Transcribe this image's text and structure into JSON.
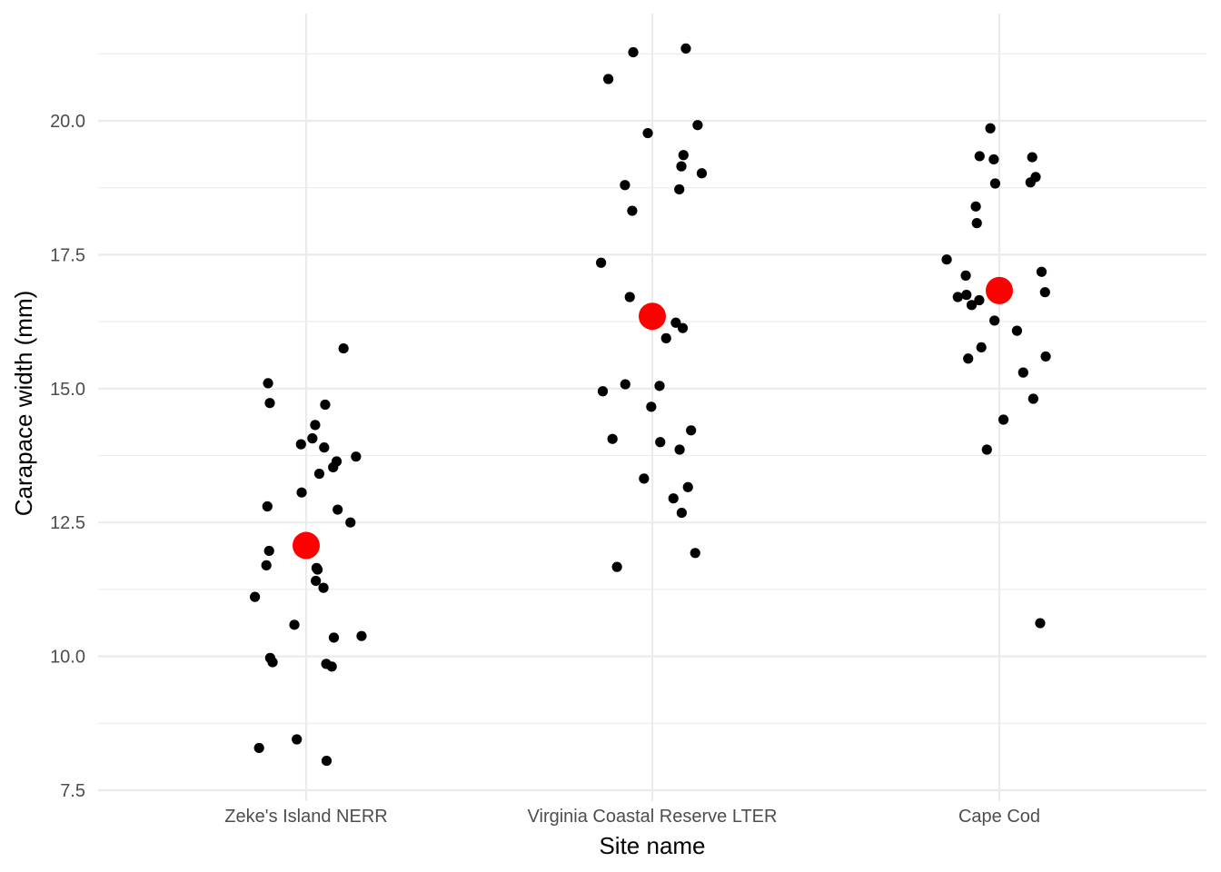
{
  "chart_data": {
    "type": "scatter",
    "title": "",
    "xlabel": "Site name",
    "ylabel": "Carapace width (mm)",
    "categories": [
      "Zeke's Island NERR",
      "Virginia Coastal Reserve LTER",
      "Cape Cod"
    ],
    "ylim": [
      7.35,
      21.8
    ],
    "yticks": [
      7.5,
      10.0,
      12.5,
      15.0,
      17.5,
      20.0
    ],
    "ytick_labels": [
      "7.5",
      "10.0",
      "12.5",
      "15.0",
      "17.5",
      "20.0"
    ],
    "grid": true,
    "legend": "none",
    "colors": {
      "points": "#000000",
      "means": "#ff0000",
      "grid": "#ebebeb"
    },
    "series": [
      {
        "role": "observations",
        "points": [
          {
            "cat": 0,
            "jitter": -0.11,
            "y": 15.1
          },
          {
            "cat": 0,
            "jitter": -0.105,
            "y": 14.73
          },
          {
            "cat": 0,
            "jitter": 0.055,
            "y": 14.7
          },
          {
            "cat": 0,
            "jitter": 0.108,
            "y": 15.75
          },
          {
            "cat": 0,
            "jitter": 0.026,
            "y": 14.32
          },
          {
            "cat": 0,
            "jitter": 0.018,
            "y": 14.07
          },
          {
            "cat": 0,
            "jitter": -0.015,
            "y": 13.96
          },
          {
            "cat": 0,
            "jitter": 0.052,
            "y": 13.9
          },
          {
            "cat": 0,
            "jitter": 0.144,
            "y": 13.73
          },
          {
            "cat": 0,
            "jitter": 0.088,
            "y": 13.64
          },
          {
            "cat": 0,
            "jitter": 0.078,
            "y": 13.53
          },
          {
            "cat": 0,
            "jitter": 0.038,
            "y": 13.41
          },
          {
            "cat": 0,
            "jitter": -0.013,
            "y": 13.06
          },
          {
            "cat": 0,
            "jitter": -0.112,
            "y": 12.8
          },
          {
            "cat": 0,
            "jitter": 0.091,
            "y": 12.74
          },
          {
            "cat": 0,
            "jitter": 0.128,
            "y": 12.5
          },
          {
            "cat": 0,
            "jitter": -0.107,
            "y": 11.97
          },
          {
            "cat": 0,
            "jitter": -0.115,
            "y": 11.7
          },
          {
            "cat": 0,
            "jitter": 0.03,
            "y": 11.65
          },
          {
            "cat": 0,
            "jitter": 0.033,
            "y": 11.62
          },
          {
            "cat": 0,
            "jitter": 0.028,
            "y": 11.41
          },
          {
            "cat": 0,
            "jitter": 0.05,
            "y": 11.28
          },
          {
            "cat": 0,
            "jitter": -0.148,
            "y": 11.11
          },
          {
            "cat": 0,
            "jitter": -0.034,
            "y": 10.59
          },
          {
            "cat": 0,
            "jitter": 0.16,
            "y": 10.38
          },
          {
            "cat": 0,
            "jitter": 0.08,
            "y": 10.35
          },
          {
            "cat": 0,
            "jitter": -0.104,
            "y": 9.97
          },
          {
            "cat": 0,
            "jitter": -0.097,
            "y": 9.89
          },
          {
            "cat": 0,
            "jitter": 0.058,
            "y": 9.86
          },
          {
            "cat": 0,
            "jitter": 0.074,
            "y": 9.81
          },
          {
            "cat": 0,
            "jitter": -0.027,
            "y": 8.45
          },
          {
            "cat": 0,
            "jitter": -0.136,
            "y": 8.29
          },
          {
            "cat": 0,
            "jitter": 0.059,
            "y": 8.05
          },
          {
            "cat": 1,
            "jitter": 0.097,
            "y": 21.35
          },
          {
            "cat": 1,
            "jitter": -0.055,
            "y": 21.28
          },
          {
            "cat": 1,
            "jitter": -0.127,
            "y": 20.78
          },
          {
            "cat": 1,
            "jitter": 0.131,
            "y": 19.92
          },
          {
            "cat": 1,
            "jitter": -0.013,
            "y": 19.77
          },
          {
            "cat": 1,
            "jitter": 0.09,
            "y": 19.36
          },
          {
            "cat": 1,
            "jitter": 0.084,
            "y": 19.15
          },
          {
            "cat": 1,
            "jitter": 0.143,
            "y": 19.02
          },
          {
            "cat": 1,
            "jitter": -0.079,
            "y": 18.8
          },
          {
            "cat": 1,
            "jitter": 0.078,
            "y": 18.72
          },
          {
            "cat": 1,
            "jitter": -0.058,
            "y": 18.32
          },
          {
            "cat": 1,
            "jitter": -0.148,
            "y": 17.35
          },
          {
            "cat": 1,
            "jitter": -0.065,
            "y": 16.71
          },
          {
            "cat": 1,
            "jitter": 0.068,
            "y": 16.23
          },
          {
            "cat": 1,
            "jitter": 0.088,
            "y": 16.13
          },
          {
            "cat": 1,
            "jitter": 0.04,
            "y": 15.94
          },
          {
            "cat": 1,
            "jitter": -0.078,
            "y": 15.08
          },
          {
            "cat": 1,
            "jitter": 0.021,
            "y": 15.05
          },
          {
            "cat": 1,
            "jitter": -0.143,
            "y": 14.95
          },
          {
            "cat": 1,
            "jitter": -0.003,
            "y": 14.66
          },
          {
            "cat": 1,
            "jitter": 0.112,
            "y": 14.22
          },
          {
            "cat": 1,
            "jitter": -0.115,
            "y": 14.06
          },
          {
            "cat": 1,
            "jitter": 0.023,
            "y": 14.0
          },
          {
            "cat": 1,
            "jitter": 0.079,
            "y": 13.86
          },
          {
            "cat": 1,
            "jitter": -0.024,
            "y": 13.32
          },
          {
            "cat": 1,
            "jitter": 0.103,
            "y": 13.16
          },
          {
            "cat": 1,
            "jitter": 0.061,
            "y": 12.95
          },
          {
            "cat": 1,
            "jitter": 0.085,
            "y": 12.68
          },
          {
            "cat": 1,
            "jitter": 0.124,
            "y": 11.93
          },
          {
            "cat": 1,
            "jitter": -0.102,
            "y": 11.67
          },
          {
            "cat": 2,
            "jitter": -0.026,
            "y": 19.86
          },
          {
            "cat": 2,
            "jitter": -0.057,
            "y": 19.34
          },
          {
            "cat": 2,
            "jitter": 0.095,
            "y": 19.32
          },
          {
            "cat": 2,
            "jitter": -0.016,
            "y": 19.28
          },
          {
            "cat": 2,
            "jitter": 0.105,
            "y": 18.95
          },
          {
            "cat": 2,
            "jitter": 0.09,
            "y": 18.85
          },
          {
            "cat": 2,
            "jitter": -0.012,
            "y": 18.83
          },
          {
            "cat": 2,
            "jitter": -0.068,
            "y": 18.4
          },
          {
            "cat": 2,
            "jitter": -0.065,
            "y": 18.09
          },
          {
            "cat": 2,
            "jitter": -0.152,
            "y": 17.41
          },
          {
            "cat": 2,
            "jitter": 0.122,
            "y": 17.18
          },
          {
            "cat": 2,
            "jitter": -0.097,
            "y": 17.11
          },
          {
            "cat": 2,
            "jitter": 0.132,
            "y": 16.8
          },
          {
            "cat": 2,
            "jitter": -0.095,
            "y": 16.75
          },
          {
            "cat": 2,
            "jitter": -0.12,
            "y": 16.71
          },
          {
            "cat": 2,
            "jitter": -0.058,
            "y": 16.65
          },
          {
            "cat": 2,
            "jitter": -0.08,
            "y": 16.56
          },
          {
            "cat": 2,
            "jitter": -0.014,
            "y": 16.27
          },
          {
            "cat": 2,
            "jitter": 0.051,
            "y": 16.08
          },
          {
            "cat": 2,
            "jitter": -0.052,
            "y": 15.77
          },
          {
            "cat": 2,
            "jitter": 0.134,
            "y": 15.6
          },
          {
            "cat": 2,
            "jitter": -0.09,
            "y": 15.56
          },
          {
            "cat": 2,
            "jitter": 0.069,
            "y": 15.3
          },
          {
            "cat": 2,
            "jitter": 0.098,
            "y": 14.81
          },
          {
            "cat": 2,
            "jitter": 0.012,
            "y": 14.42
          },
          {
            "cat": 2,
            "jitter": -0.036,
            "y": 13.86
          },
          {
            "cat": 2,
            "jitter": 0.118,
            "y": 10.62
          }
        ]
      },
      {
        "role": "means",
        "values": [
          12.07,
          16.35,
          16.83
        ]
      }
    ]
  }
}
